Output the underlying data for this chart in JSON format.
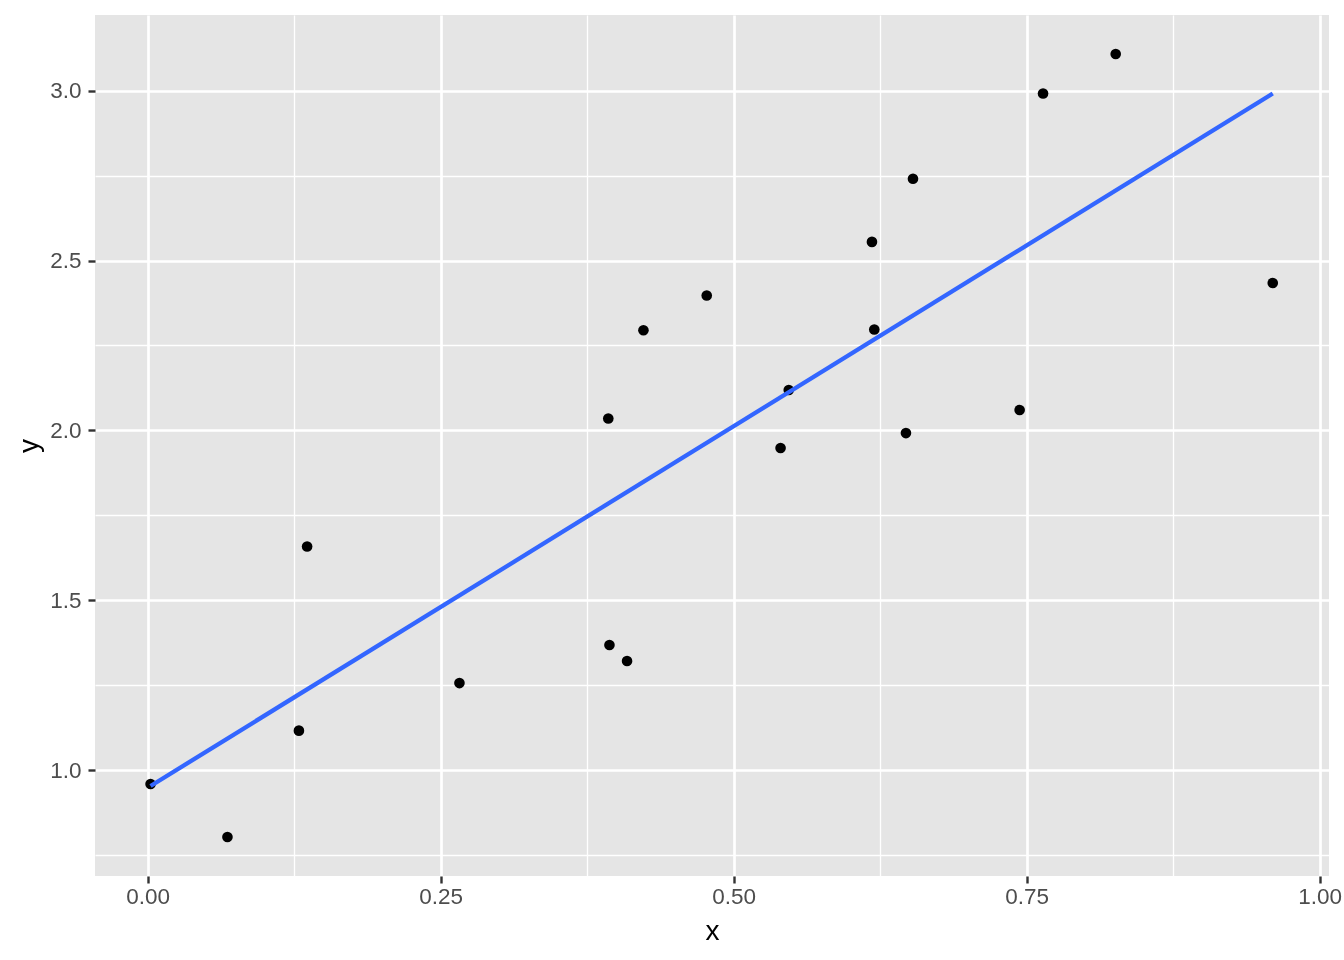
{
  "chart_data": {
    "type": "scatter",
    "xlabel": "x",
    "ylabel": "y",
    "xlim": [
      -0.045,
      1.008
    ],
    "ylim": [
      0.688,
      3.223
    ],
    "xticks": [
      {
        "value": 0,
        "label": "0.00"
      },
      {
        "value": 0.125,
        "label": null
      },
      0.25,
      {
        "value": 0.375,
        "label": null
      },
      {
        "value": 0.5,
        "label": "0.50"
      },
      {
        "value": 0.625,
        "label": null
      },
      0.75,
      {
        "value": 0.875,
        "label": null
      },
      {
        "value": 1,
        "label": "1.00"
      }
    ],
    "yticks": [
      {
        "value": 0.75,
        "label": null
      },
      {
        "value": 1,
        "label": "1.0"
      },
      {
        "value": 1.25,
        "label": null
      },
      1.5,
      {
        "value": 1.75,
        "label": null
      },
      {
        "value": 2,
        "label": "2.0"
      },
      {
        "value": 2.25,
        "label": null
      },
      2.5,
      {
        "value": 2.75,
        "label": null
      },
      {
        "value": 3,
        "label": "3.0"
      }
    ],
    "grid": true,
    "series": [
      {
        "color": "#000000",
        "marker": "circle",
        "x": [
          0.0024,
          0.068,
          0.129,
          0.136,
          0.266,
          0.393,
          0.394,
          0.409,
          0.423,
          0.477,
          0.54,
          0.547,
          0.618,
          0.62,
          0.647,
          0.653,
          0.744,
          0.764,
          0.826,
          0.96
        ],
        "values": [
          0.959,
          0.803,
          1.116,
          1.658,
          1.256,
          2.035,
          1.368,
          1.321,
          2.295,
          2.397,
          1.948,
          2.119,
          2.555,
          2.297,
          1.992,
          2.741,
          2.06,
          2.992,
          3.108,
          2.434
        ]
      },
      {
        "type": "line",
        "color": "#3366ff",
        "line_style": "solid",
        "x": [
          0.0024,
          0.96
        ],
        "values": [
          0.953,
          2.992
        ]
      }
    ]
  }
}
